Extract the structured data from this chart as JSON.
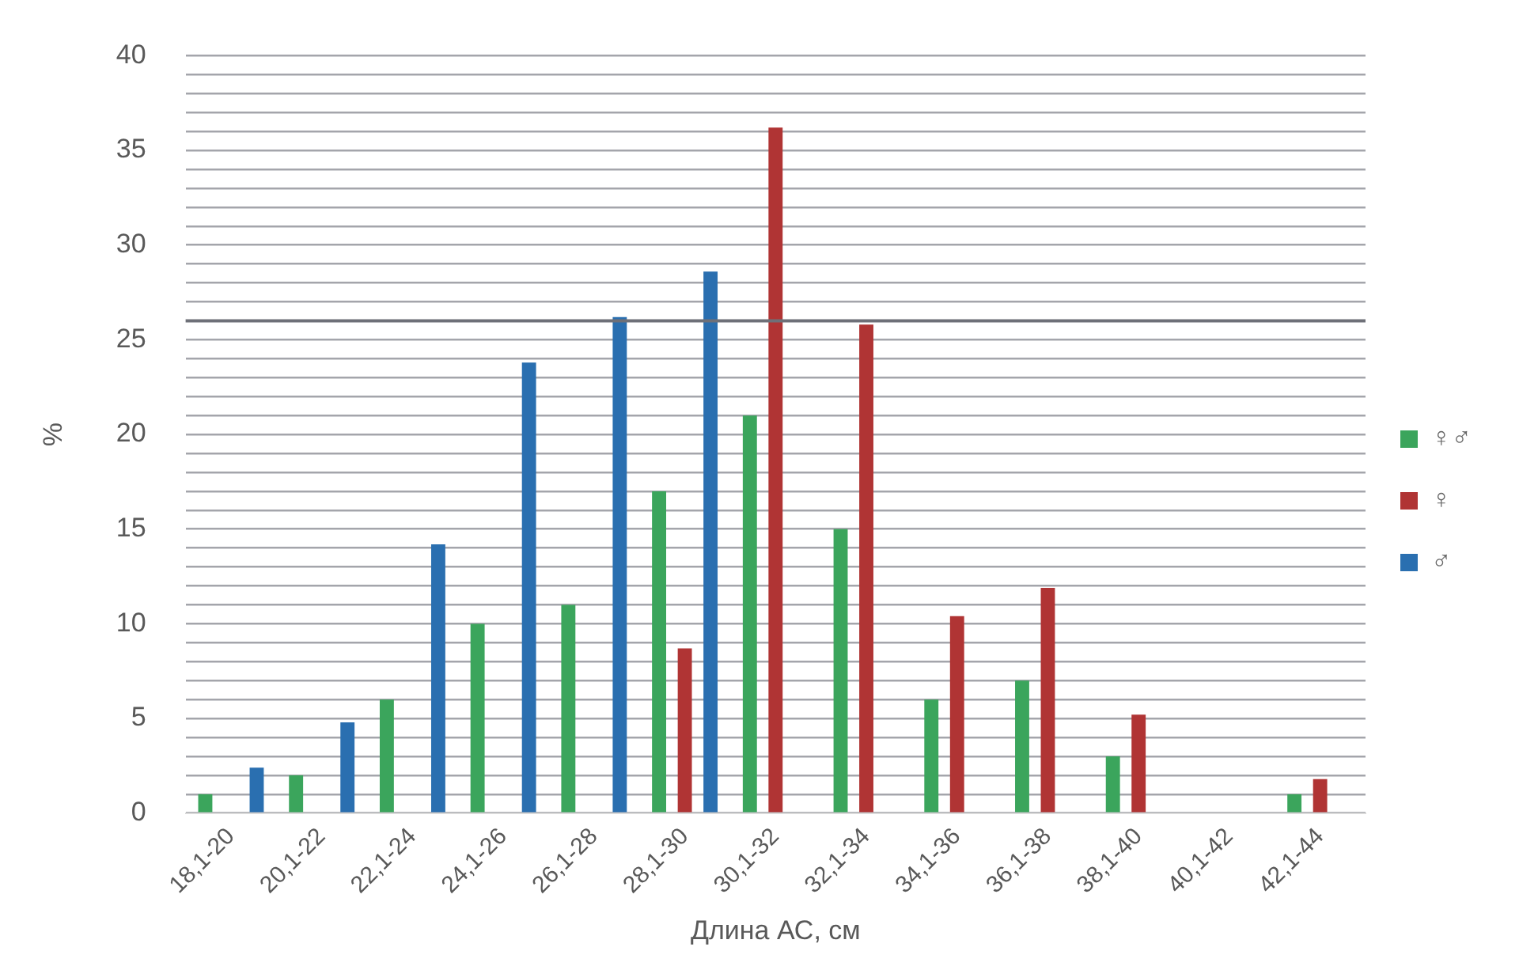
{
  "chart_data": {
    "type": "bar",
    "xlabel": "Длина АС, см",
    "ylabel": "%",
    "categories": [
      "18,1-20",
      "20,1-22",
      "22,1-24",
      "24,1-26",
      "26,1-28",
      "28,1-30",
      "30,1-32",
      "32,1-34",
      "34,1-36",
      "36,1-38",
      "38,1-40",
      "40,1-42",
      "42,1-44"
    ],
    "series": [
      {
        "name": "♀♂",
        "color": "#3ba55c",
        "values": [
          1,
          2,
          6,
          10,
          11,
          17,
          21,
          15,
          6,
          7,
          3,
          0,
          1
        ]
      },
      {
        "name": "♀",
        "color": "#b03434",
        "values": [
          null,
          null,
          null,
          null,
          null,
          8.7,
          36.2,
          25.8,
          10.4,
          11.9,
          5.2,
          0,
          1.8
        ]
      },
      {
        "name": "♂",
        "color": "#2a6fb0",
        "values": [
          2.4,
          4.8,
          14.2,
          23.8,
          26.2,
          28.6,
          null,
          null,
          null,
          null,
          null,
          null,
          null
        ]
      }
    ],
    "ylim": [
      0,
      40
    ],
    "yticks": [
      0,
      {
        "value": 1,
        "label": null
      },
      {
        "value": 2,
        "label": null
      },
      {
        "value": 3,
        "label": null
      },
      {
        "value": 4,
        "label": null
      },
      5,
      {
        "value": 6,
        "label": null
      },
      {
        "value": 7,
        "label": null
      },
      {
        "value": 8,
        "label": null
      },
      {
        "value": 9,
        "label": null
      },
      10,
      {
        "value": 11,
        "label": null
      },
      {
        "value": 12,
        "label": null
      },
      {
        "value": 13,
        "label": null
      },
      {
        "value": 14,
        "label": null
      },
      15,
      {
        "value": 16,
        "label": null
      },
      {
        "value": 17,
        "label": null
      },
      {
        "value": 18,
        "label": null
      },
      {
        "value": 19,
        "label": null
      },
      20,
      {
        "value": 21,
        "label": null
      },
      {
        "value": 22,
        "label": null
      },
      {
        "value": 23,
        "label": null
      },
      {
        "value": 24,
        "label": null
      },
      25,
      {
        "value": 26,
        "label": null
      },
      {
        "value": 27,
        "label": null
      },
      {
        "value": 28,
        "label": null
      },
      {
        "value": 29,
        "label": null
      },
      30,
      {
        "value": 31,
        "label": null
      },
      {
        "value": 32,
        "label": null
      },
      {
        "value": 33,
        "label": null
      },
      {
        "value": 34,
        "label": null
      },
      35,
      {
        "value": 36,
        "label": null
      },
      {
        "value": 37,
        "label": null
      },
      {
        "value": 38,
        "label": null
      },
      {
        "value": 39,
        "label": null
      },
      40
    ],
    "ref_lines": [
      {
        "axis": "y",
        "value": 26,
        "color": "#6e7078"
      }
    ],
    "grid": "y",
    "legend": "right"
  }
}
